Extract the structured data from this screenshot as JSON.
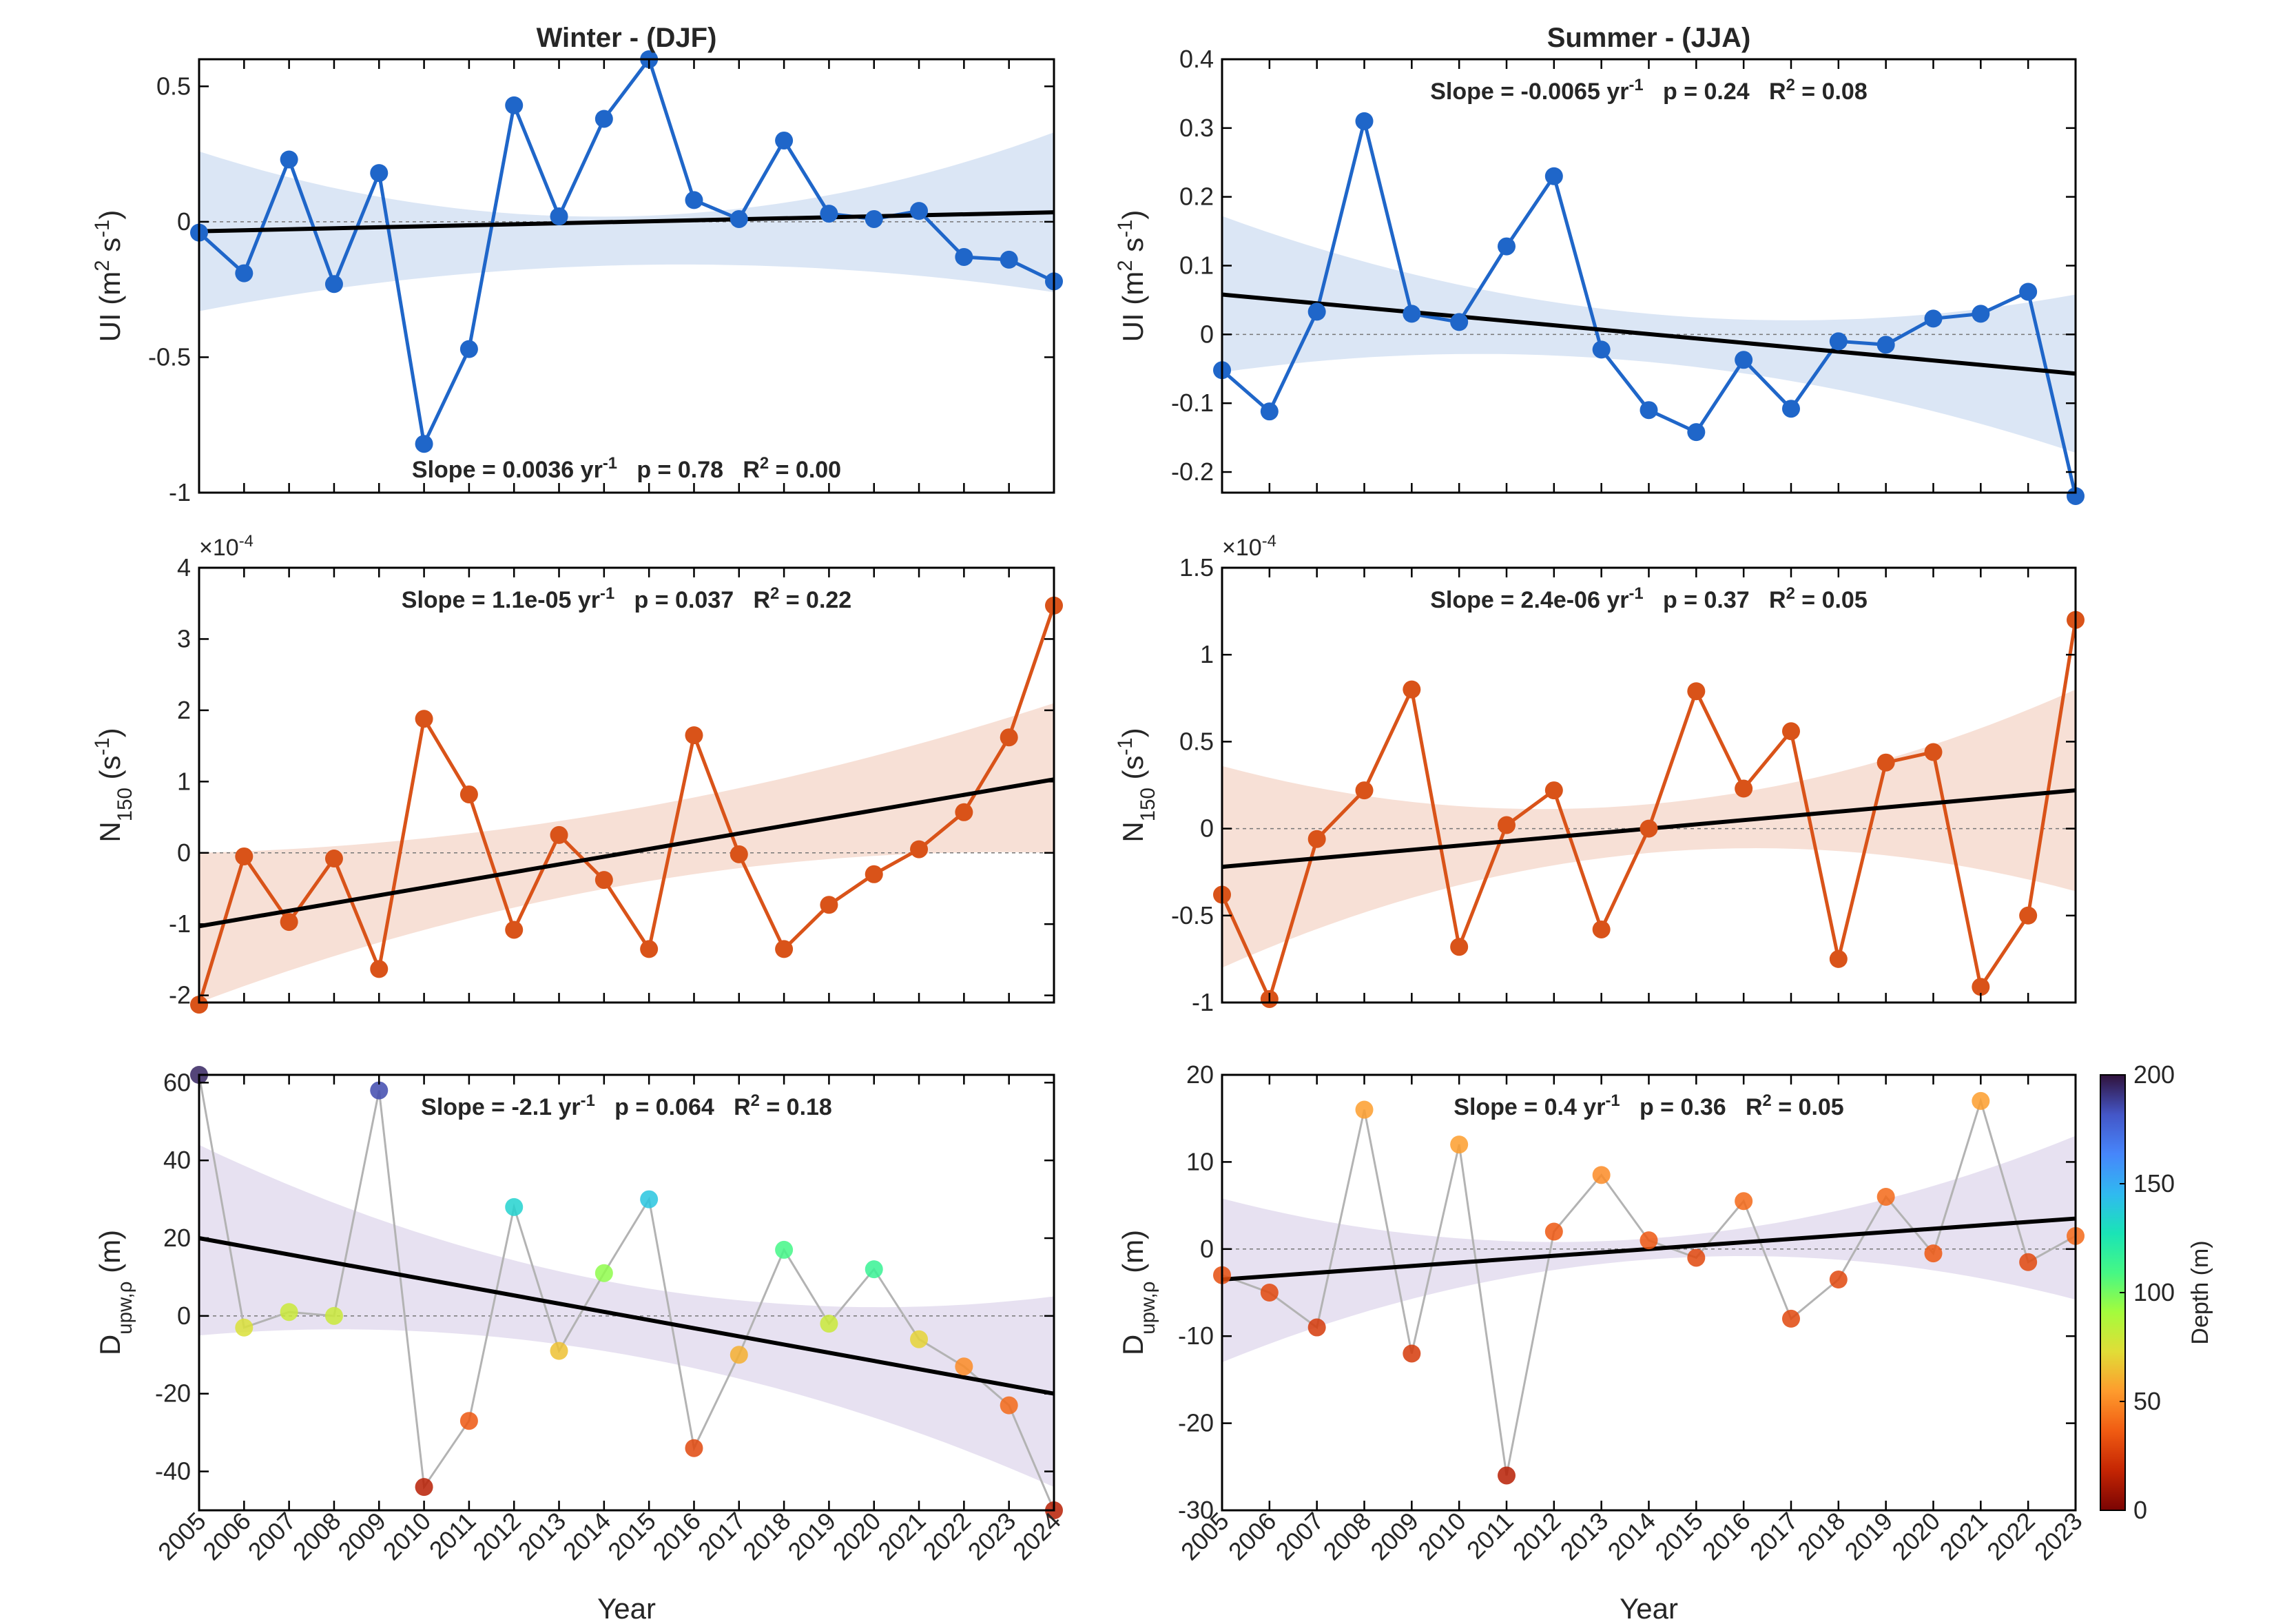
{
  "chart_data": [
    {
      "id": "ui_winter",
      "type": "line",
      "title": "Winter - (DJF)",
      "ylabel_html": "UI (m<tspan baseline-shift=\"super\" font-size=\"70%\">2</tspan> s<tspan baseline-shift=\"super\" font-size=\"70%\">-1</tspan>)",
      "xlabel": "",
      "x": [
        2005,
        2006,
        2007,
        2008,
        2009,
        2010,
        2011,
        2012,
        2013,
        2014,
        2015,
        2016,
        2017,
        2018,
        2019,
        2020,
        2021,
        2022,
        2023,
        2024
      ],
      "values": [
        -0.04,
        -0.19,
        0.23,
        -0.23,
        0.18,
        -0.82,
        -0.47,
        0.43,
        0.02,
        0.38,
        0.6,
        0.08,
        0.01,
        0.3,
        0.03,
        0.01,
        0.04,
        -0.13,
        -0.14,
        -0.22
      ],
      "xlim": [
        2005,
        2024
      ],
      "ylim": [
        -1,
        0.6
      ],
      "yticks": [
        -1,
        -0.5,
        0,
        0.5
      ],
      "ytick_labels": [
        "-1",
        "-0.5",
        "0",
        "0.5"
      ],
      "trend": {
        "y_start": -0.035,
        "y_end": 0.035
      },
      "ci": {
        "upper": [
          0.26,
          0.02,
          0.33
        ],
        "lower": [
          -0.33,
          -0.16,
          -0.26
        ]
      },
      "stats": {
        "slope": "Slope = 0.0036 yr",
        "p": "p = 0.78",
        "r2": "R",
        "r2_value": " = 0.00",
        "position": "bottom"
      },
      "color": "#1f66c9",
      "band_color": "#dbe6f5",
      "show_xticklabels": false
    },
    {
      "id": "ui_summer",
      "type": "line",
      "title": "Summer - (JJA)",
      "ylabel_html": "UI (m<tspan baseline-shift=\"super\" font-size=\"70%\">2</tspan> s<tspan baseline-shift=\"super\" font-size=\"70%\">-1</tspan>)",
      "xlabel": "",
      "x": [
        2005,
        2006,
        2007,
        2008,
        2009,
        2010,
        2011,
        2012,
        2013,
        2014,
        2015,
        2016,
        2017,
        2018,
        2019,
        2020,
        2021,
        2022,
        2023
      ],
      "values": [
        -0.052,
        -0.112,
        0.033,
        0.31,
        0.03,
        0.018,
        0.128,
        0.23,
        -0.022,
        -0.11,
        -0.142,
        -0.037,
        -0.108,
        -0.01,
        -0.015,
        0.023,
        0.03,
        0.062,
        -0.235
      ],
      "xlim": [
        2005,
        2023
      ],
      "ylim": [
        -0.23,
        0.4
      ],
      "yticks": [
        -0.2,
        -0.1,
        0,
        0.1,
        0.2,
        0.3,
        0.4
      ],
      "ytick_labels": [
        "-0.2",
        "-0.1",
        "0",
        "0.1",
        "0.2",
        "0.3",
        "0.4"
      ],
      "trend": {
        "y_start": 0.058,
        "y_end": -0.057
      },
      "ci": {
        "upper": [
          0.172,
          0.03,
          0.058
        ],
        "lower": [
          -0.055,
          -0.04,
          -0.172
        ]
      },
      "stats": {
        "slope": "Slope = -0.0065 yr",
        "p": "p = 0.24",
        "r2": "R",
        "r2_value": " = 0.08",
        "position": "top"
      },
      "color": "#1f66c9",
      "band_color": "#dbe6f5",
      "show_xticklabels": false
    },
    {
      "id": "n150_winter",
      "type": "line",
      "title": "",
      "ylabel_html": "N<tspan baseline-shift=\"sub\" font-size=\"70%\">150</tspan> (s<tspan baseline-shift=\"super\" font-size=\"70%\">-1</tspan>)",
      "xlabel": "",
      "exponent": "×10",
      "exponent_power": "-4",
      "x": [
        2005,
        2006,
        2007,
        2008,
        2009,
        2010,
        2011,
        2012,
        2013,
        2014,
        2015,
        2016,
        2017,
        2018,
        2019,
        2020,
        2021,
        2022,
        2023,
        2024
      ],
      "values": [
        -2.13,
        -0.05,
        -0.97,
        -0.08,
        -1.63,
        1.88,
        0.82,
        -1.08,
        0.25,
        -0.38,
        -1.35,
        1.65,
        -0.02,
        -1.35,
        -0.73,
        -0.3,
        0.05,
        0.57,
        1.62,
        3.47
      ],
      "xlim": [
        2005,
        2024
      ],
      "ylim": [
        -2.1,
        4
      ],
      "yticks": [
        -2,
        -1,
        0,
        1,
        2,
        3,
        4
      ],
      "ytick_labels": [
        "-2",
        "-1",
        "0",
        "1",
        "2",
        "3",
        "4"
      ],
      "trend": {
        "y_start": -1.03,
        "y_end": 1.03
      },
      "ci": {
        "upper": [
          0,
          0.6,
          2.1
        ],
        "lower": [
          -2.1,
          -0.45,
          0
        ]
      },
      "stats": {
        "slope": "Slope = 1.1e-05 yr",
        "p": "p = 0.037",
        "r2": "R",
        "r2_value": " = 0.22",
        "position": "top"
      },
      "color": "#d95319",
      "band_color": "#f7e0d6",
      "show_xticklabels": false
    },
    {
      "id": "n150_summer",
      "type": "line",
      "title": "",
      "ylabel_html": "N<tspan baseline-shift=\"sub\" font-size=\"70%\">150</tspan> (s<tspan baseline-shift=\"super\" font-size=\"70%\">-1</tspan>)",
      "xlabel": "",
      "exponent": "×10",
      "exponent_power": "-4",
      "x": [
        2005,
        2006,
        2007,
        2008,
        2009,
        2010,
        2011,
        2012,
        2013,
        2014,
        2015,
        2016,
        2017,
        2018,
        2019,
        2020,
        2021,
        2022,
        2023
      ],
      "values": [
        -0.38,
        -0.98,
        -0.06,
        0.22,
        0.8,
        -0.68,
        0.02,
        0.22,
        -0.58,
        0,
        0.79,
        0.23,
        0.56,
        -0.75,
        0.38,
        0.44,
        -0.91,
        -0.5,
        1.2
      ],
      "xlim": [
        2005,
        2023
      ],
      "ylim": [
        -1,
        1.5
      ],
      "yticks": [
        -1,
        -0.5,
        0,
        0.5,
        1,
        1.5
      ],
      "ytick_labels": [
        "-1",
        "-0.5",
        "0",
        "0.5",
        "1",
        "1.5"
      ],
      "trend": {
        "y_start": -0.22,
        "y_end": 0.22
      },
      "ci": {
        "upper": [
          0.36,
          0.14,
          0.8
        ],
        "lower": [
          -0.8,
          -0.14,
          -0.36
        ]
      },
      "stats": {
        "slope": "Slope = 2.4e-06 yr",
        "p": "p = 0.37",
        "r2": "R",
        "r2_value": " = 0.05",
        "position": "top"
      },
      "color": "#d95319",
      "band_color": "#f7e0d6",
      "show_xticklabels": false
    },
    {
      "id": "dupw_winter",
      "type": "scatter",
      "title": "",
      "ylabel_html": "D<tspan baseline-shift=\"sub\" font-size=\"70%\">upw,ρ</tspan> (m)",
      "xlabel": "Year",
      "x": [
        2005,
        2006,
        2007,
        2008,
        2009,
        2010,
        2011,
        2012,
        2013,
        2014,
        2015,
        2016,
        2017,
        2018,
        2019,
        2020,
        2021,
        2022,
        2023,
        2024
      ],
      "values": [
        62,
        -3,
        1,
        0,
        58,
        -44,
        -27,
        28,
        -9,
        11,
        30,
        -34,
        -10,
        17,
        -2,
        12,
        -6,
        -13,
        -23,
        -50
      ],
      "depth": [
        195,
        75,
        80,
        80,
        185,
        15,
        35,
        135,
        65,
        95,
        140,
        30,
        60,
        110,
        80,
        115,
        70,
        50,
        40,
        15
      ],
      "xlim": [
        2005,
        2024
      ],
      "ylim": [
        -50,
        62
      ],
      "yticks": [
        -40,
        -20,
        0,
        20,
        40,
        60
      ],
      "ytick_labels": [
        "-40",
        "-20",
        "0",
        "20",
        "40",
        "60"
      ],
      "trend": {
        "y_start": 20,
        "y_end": -20
      },
      "ci": {
        "upper": [
          44,
          8,
          5
        ],
        "lower": [
          -5,
          -10,
          -44
        ]
      },
      "stats": {
        "slope": "Slope = -2.1 yr",
        "p": "p = 0.064",
        "r2": "R",
        "r2_value": " = 0.18",
        "position": "top"
      },
      "color": "#b3b3b3",
      "band_color": "#e7e1f1",
      "show_xticklabels": true
    },
    {
      "id": "dupw_summer",
      "type": "scatter",
      "title": "",
      "ylabel_html": "D<tspan baseline-shift=\"sub\" font-size=\"70%\">upw,ρ</tspan> (m)",
      "xlabel": "Year",
      "x": [
        2005,
        2006,
        2007,
        2008,
        2009,
        2010,
        2011,
        2012,
        2013,
        2014,
        2015,
        2016,
        2017,
        2018,
        2019,
        2020,
        2021,
        2022,
        2023
      ],
      "values": [
        -3,
        -5,
        -9,
        16,
        -12,
        12,
        -26,
        2,
        8.5,
        1,
        -1,
        5.5,
        -8,
        -3.5,
        6,
        -0.5,
        17,
        -1.5,
        1.5
      ],
      "depth": [
        32,
        30,
        25,
        55,
        25,
        55,
        15,
        35,
        50,
        35,
        30,
        40,
        30,
        30,
        40,
        35,
        55,
        30,
        40
      ],
      "xlim": [
        2005,
        2023
      ],
      "ylim": [
        -30,
        20
      ],
      "yticks": [
        -30,
        -20,
        -10,
        0,
        10,
        20
      ],
      "ytick_labels": [
        "-30",
        "-20",
        "-10",
        "0",
        "10",
        "20"
      ],
      "trend": {
        "y_start": -3.5,
        "y_end": 3.5
      },
      "ci": {
        "upper": [
          5.8,
          1.2,
          13
        ],
        "lower": [
          -13,
          -1.2,
          -5.8
        ]
      },
      "stats": {
        "slope": "Slope = 0.4 yr",
        "p": "p = 0.36",
        "r2": "R",
        "r2_value": " = 0.05",
        "position": "top"
      },
      "color": "#b3b3b3",
      "band_color": "#e7e1f1",
      "show_xticklabels": true
    }
  ],
  "colorbar": {
    "label": "Depth (m)",
    "ticks": [
      0,
      50,
      100,
      150,
      200
    ],
    "tick_labels": [
      "0",
      "50",
      "100",
      "150",
      "200"
    ],
    "range": [
      0,
      200
    ],
    "colors": [
      "#7a0403",
      "#c42503",
      "#f05b12",
      "#fe9b2d",
      "#e1dd37",
      "#a4fc3c",
      "#46f884",
      "#1ae4b6",
      "#30b9f0",
      "#4686fb",
      "#4456c7",
      "#30123b"
    ]
  }
}
